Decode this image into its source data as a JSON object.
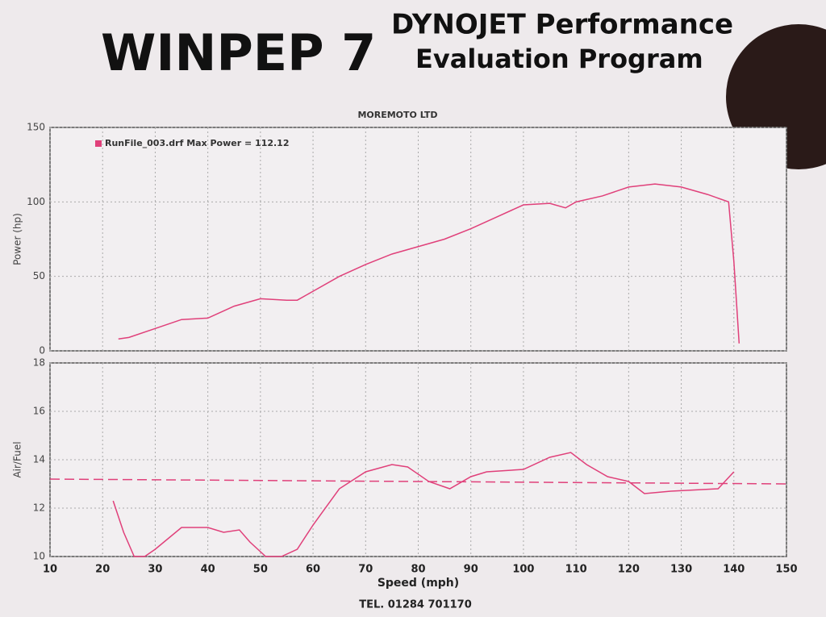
{
  "header": {
    "brand": "WINPEP 7",
    "title_line1": "DYNOJET Performance",
    "title_line2": "Evaluation Program",
    "company": "MOREMOTO LTD",
    "phone": "TEL. 01284 701170"
  },
  "chart_data": [
    {
      "type": "line",
      "ylabel": "Power (hp)",
      "xlim": [
        10,
        150
      ],
      "xticks": [
        10,
        20,
        30,
        40,
        50,
        60,
        70,
        80,
        90,
        100,
        110,
        120,
        130,
        140,
        150
      ],
      "show_xtick_labels": false,
      "ylim": [
        0,
        150
      ],
      "yticks": [
        0,
        50,
        100,
        150
      ],
      "grid": true,
      "legend": "top-left",
      "series": [
        {
          "name": "RunFile_003.drf Max Power = 112.12",
          "color": "#e0407a",
          "x": [
            23,
            25,
            30,
            35,
            40,
            45,
            50,
            55,
            57,
            60,
            65,
            70,
            75,
            80,
            85,
            90,
            95,
            100,
            105,
            108,
            110,
            115,
            120,
            125,
            130,
            135,
            139,
            140,
            141
          ],
          "values": [
            8,
            9,
            15,
            21,
            22,
            30,
            35,
            34,
            34,
            40,
            50,
            58,
            65,
            70,
            75,
            82,
            90,
            98,
            99,
            96,
            100,
            104,
            110,
            112,
            110,
            105,
            100,
            60,
            5
          ]
        }
      ]
    },
    {
      "type": "line",
      "ylabel": "Air/Fuel",
      "xlabel": "Speed (mph)",
      "xlim": [
        10,
        150
      ],
      "xticks": [
        10,
        20,
        30,
        40,
        50,
        60,
        70,
        80,
        90,
        100,
        110,
        120,
        130,
        140,
        150
      ],
      "show_xtick_labels": true,
      "ylim": [
        10,
        18
      ],
      "yticks": [
        10,
        12,
        14,
        16,
        18
      ],
      "grid": true,
      "series": [
        {
          "color": "#e0407a",
          "dash": false,
          "x": [
            22,
            24,
            26,
            28,
            30,
            35,
            40,
            43,
            46,
            48,
            51,
            54,
            57,
            60,
            65,
            70,
            75,
            78,
            82,
            86,
            90,
            93,
            100,
            105,
            109,
            112,
            116,
            120,
            123,
            128,
            137,
            140
          ],
          "values": [
            12.3,
            11,
            10,
            10,
            10.3,
            11.2,
            11.2,
            11,
            11.1,
            10.6,
            10,
            10,
            10.3,
            11.3,
            12.8,
            13.5,
            13.8,
            13.7,
            13.1,
            12.8,
            13.3,
            13.5,
            13.6,
            14.1,
            14.3,
            13.8,
            13.3,
            13.1,
            12.6,
            12.7,
            12.8,
            13.5
          ]
        },
        {
          "color": "#e0407a",
          "dash": true,
          "x": [
            10,
            150
          ],
          "values": [
            13.2,
            13.0
          ]
        }
      ]
    }
  ]
}
